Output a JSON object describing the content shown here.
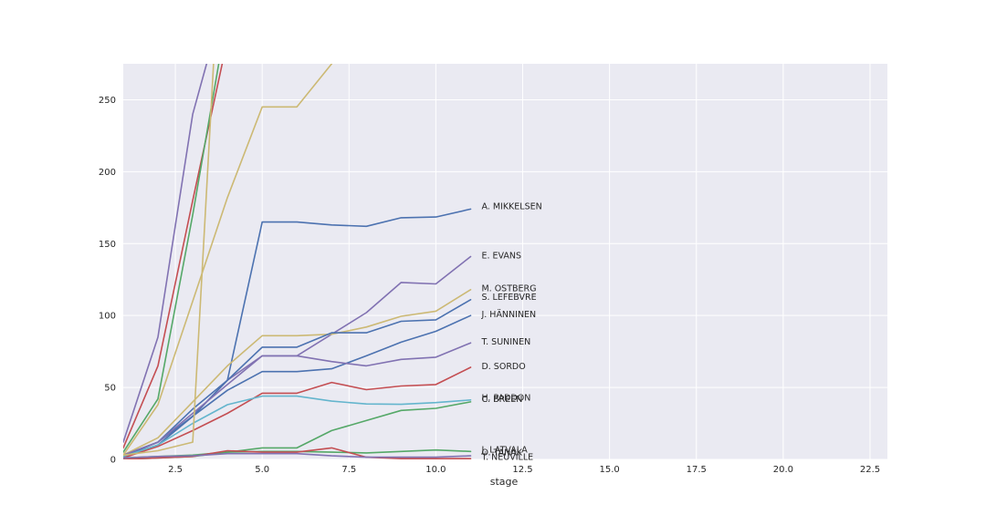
{
  "chart_data": {
    "type": "line",
    "xlabel": "stage",
    "ylabel": "",
    "xlim": [
      1,
      23
    ],
    "ylim": [
      0,
      275
    ],
    "x_ticks": [
      2.5,
      5.0,
      7.5,
      10.0,
      12.5,
      15.0,
      17.5,
      20.0,
      22.5
    ],
    "y_ticks": [
      0,
      50,
      100,
      150,
      200,
      250
    ],
    "grid": true,
    "background": "#eaeaf2",
    "series": [
      {
        "name": "A. MIKKELSEN",
        "color": "#4c72b0",
        "label_y": 176,
        "x": [
          1,
          2,
          3,
          4,
          5,
          6,
          7,
          8,
          9,
          10,
          11
        ],
        "y": [
          3,
          12,
          35,
          55,
          165,
          165,
          163,
          162,
          168,
          168.5,
          174
        ]
      },
      {
        "name": "E. EVANS",
        "color": "#8172b2",
        "label_y": 142,
        "x": [
          1,
          2,
          3,
          4,
          5,
          6,
          7,
          8,
          9,
          10,
          11
        ],
        "y": [
          2,
          10,
          30,
          55,
          72,
          72,
          87,
          102,
          123,
          122,
          141
        ]
      },
      {
        "name": "M. OSTBERG",
        "color": "#ccb974",
        "label_y": 119,
        "x": [
          1,
          2,
          3,
          4,
          5,
          6,
          7,
          8,
          9,
          10,
          11
        ],
        "y": [
          3,
          15,
          40,
          65,
          86,
          86,
          87,
          92,
          99.5,
          103,
          118
        ]
      },
      {
        "name": "S. LEFEBVRE",
        "color": "#4c72b0",
        "label_y": 113,
        "x": [
          1,
          2,
          3,
          4,
          5,
          6,
          7,
          8,
          9,
          10,
          11
        ],
        "y": [
          2,
          10,
          30,
          55,
          78,
          78,
          88,
          88,
          96,
          97,
          111
        ]
      },
      {
        "name": "J. HÄNNINEN",
        "color": "#4c72b0",
        "label_y": 101,
        "x": [
          1,
          2,
          3,
          4,
          5,
          6,
          7,
          8,
          9,
          10,
          11
        ],
        "y": [
          2,
          12,
          30,
          48,
          61,
          61,
          63,
          72,
          81.5,
          89,
          100
        ]
      },
      {
        "name": "T. SUNINEN",
        "color": "#8172b2",
        "label_y": 82,
        "x": [
          1,
          2,
          3,
          4,
          5,
          6,
          7,
          8,
          9,
          10,
          11
        ],
        "y": [
          3,
          12,
          32,
          52,
          72,
          72,
          68,
          65,
          69.5,
          71,
          81
        ]
      },
      {
        "name": "D. SORDO",
        "color": "#c44e52",
        "label_y": 65,
        "x": [
          1,
          2,
          3,
          4,
          5,
          6,
          7,
          8,
          9,
          10,
          11
        ],
        "y": [
          1,
          9,
          20,
          32,
          46,
          46,
          53.5,
          48.5,
          51,
          52,
          64
        ]
      },
      {
        "name": "H. PADDON",
        "color": "#64b5cd",
        "label_y": 43,
        "x": [
          1,
          2,
          3,
          4,
          5,
          6,
          7,
          8,
          9,
          10,
          11
        ],
        "y": [
          2,
          10,
          25,
          38,
          44,
          44,
          40.5,
          38.5,
          38.3,
          39.5,
          41.3
        ]
      },
      {
        "name": "C. BREEN",
        "color": "#55a868",
        "label_y": 42,
        "x": [
          1,
          2,
          3,
          4,
          5,
          6,
          7,
          8,
          9,
          10,
          11
        ],
        "y": [
          1,
          2,
          3,
          5,
          8,
          8,
          20,
          27,
          34,
          35.5,
          40
        ]
      },
      {
        "name": "J. LATVALA",
        "color": "#55a868",
        "label_y": 7,
        "x": [
          1,
          2,
          3,
          4,
          5,
          6,
          7,
          8,
          9,
          10,
          11
        ],
        "y": [
          0,
          1,
          2,
          5,
          5.5,
          5.5,
          5,
          4.5,
          5.5,
          6.5,
          5.5
        ]
      },
      {
        "name": "O. TANAK",
        "color": "#c44e52",
        "label_y": 5,
        "x": [
          1,
          2,
          3,
          4,
          5,
          6,
          7,
          8,
          9,
          10,
          11
        ],
        "y": [
          0,
          1,
          2,
          6,
          5,
          5,
          8,
          1.5,
          0.5,
          0.5,
          0.5
        ]
      },
      {
        "name": "T. NEUVILLE",
        "color": "#8172b2",
        "label_y": 2,
        "x": [
          1,
          2,
          3,
          4,
          5,
          6,
          7,
          8,
          9,
          10,
          11
        ],
        "y": [
          1,
          2,
          2.5,
          4,
          4,
          4,
          2.5,
          1.5,
          1.5,
          1.5,
          2.5
        ]
      },
      {
        "name": "",
        "color": "#8172b2",
        "label_y": null,
        "x": [
          1,
          2,
          3,
          3.4
        ],
        "y": [
          12,
          85,
          240,
          275
        ]
      },
      {
        "name": "",
        "color": "#c44e52",
        "label_y": null,
        "x": [
          1,
          2,
          3,
          3.85
        ],
        "y": [
          8,
          65,
          180,
          275
        ]
      },
      {
        "name": "",
        "color": "#55a868",
        "label_y": null,
        "x": [
          1,
          2,
          3,
          3.75
        ],
        "y": [
          5,
          42,
          170,
          275
        ]
      },
      {
        "name": "",
        "color": "#ccb974",
        "label_y": null,
        "x": [
          1,
          2,
          3,
          3.6
        ],
        "y": [
          3,
          6,
          12,
          275
        ]
      },
      {
        "name": "",
        "color": "#ccb974",
        "label_y": null,
        "x": [
          1,
          2,
          3,
          4,
          5,
          6,
          7
        ],
        "y": [
          3,
          38,
          110,
          182,
          245,
          245,
          275
        ]
      }
    ]
  }
}
